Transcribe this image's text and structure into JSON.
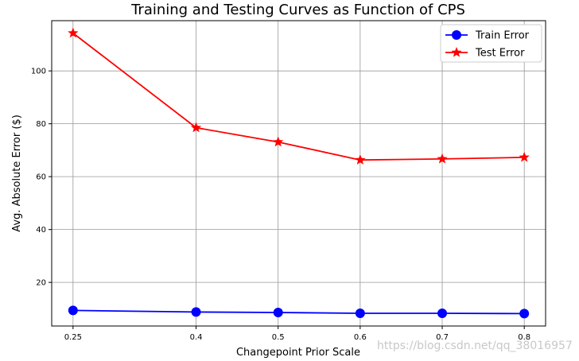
{
  "chart_data": {
    "type": "line",
    "title": "Training and Testing Curves as Function of CPS",
    "xlabel": "Changepoint Prior Scale",
    "ylabel": "Avg. Absolute Error ($)",
    "x": [
      0.25,
      0.4,
      0.5,
      0.6,
      0.7,
      0.8
    ],
    "x_tick_labels": [
      "0.25",
      "0.4",
      "0.5",
      "0.6",
      "0.7",
      "0.8"
    ],
    "y_ticks": [
      20,
      40,
      60,
      80,
      100
    ],
    "xlim": [
      0.224,
      0.826
    ],
    "ylim": [
      3.5,
      119
    ],
    "grid": true,
    "legend_position": "top-right",
    "series": [
      {
        "name": "Train Error",
        "color": "#0000ff",
        "marker": "circle",
        "values": [
          9.4,
          8.8,
          8.6,
          8.3,
          8.3,
          8.2
        ]
      },
      {
        "name": "Test Error",
        "color": "#ff0000",
        "marker": "star",
        "values": [
          114.3,
          78.5,
          73.1,
          66.3,
          66.7,
          67.3
        ]
      }
    ]
  },
  "watermark": "https://blog.csdn.net/qq_38016957"
}
